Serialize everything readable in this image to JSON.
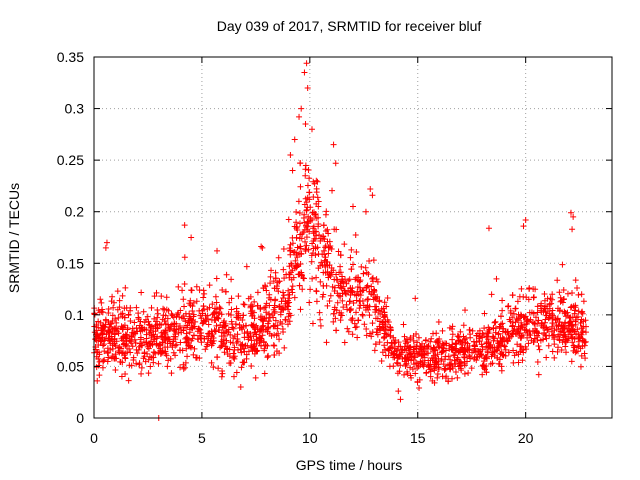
{
  "chart_data": {
    "type": "scatter",
    "title": "Day 039 of 2017, SRMTID for receiver bluf",
    "xlabel": "GPS time / hours",
    "ylabel": "SRMTID / TECUs",
    "xlim": [
      0,
      24
    ],
    "ylim": [
      0,
      0.35
    ],
    "xticks": [
      0,
      5,
      10,
      15,
      20
    ],
    "yticks": [
      0,
      0.05,
      0.1,
      0.15,
      0.2,
      0.25,
      0.3,
      0.35
    ],
    "xtick_labels": [
      "0",
      "5",
      "10",
      "15",
      "20"
    ],
    "ytick_labels": [
      "0",
      "0.05",
      "0.1",
      "0.15",
      "0.2",
      "0.25",
      "0.3",
      "0.35"
    ],
    "grid": true,
    "marker": "+",
    "color": "#ff0000",
    "time_range_hours": [
      0,
      22.8
    ],
    "baseline_profile": [
      [
        0,
        0.08
      ],
      [
        1,
        0.08
      ],
      [
        2,
        0.075
      ],
      [
        3,
        0.075
      ],
      [
        4,
        0.085
      ],
      [
        5,
        0.095
      ],
      [
        6,
        0.085
      ],
      [
        7,
        0.08
      ],
      [
        8,
        0.09
      ],
      [
        9,
        0.12
      ],
      [
        9.5,
        0.17
      ],
      [
        10,
        0.19
      ],
      [
        10.5,
        0.16
      ],
      [
        11,
        0.13
      ],
      [
        12,
        0.12
      ],
      [
        12.8,
        0.11
      ],
      [
        13.5,
        0.085
      ],
      [
        14,
        0.065
      ],
      [
        15,
        0.06
      ],
      [
        16,
        0.06
      ],
      [
        17,
        0.065
      ],
      [
        18,
        0.07
      ],
      [
        19,
        0.075
      ],
      [
        20,
        0.09
      ],
      [
        21,
        0.095
      ],
      [
        22,
        0.09
      ],
      [
        22.8,
        0.08
      ]
    ],
    "spread_profile": [
      [
        0,
        0.025
      ],
      [
        9,
        0.035
      ],
      [
        10,
        0.06
      ],
      [
        11,
        0.04
      ],
      [
        13,
        0.03
      ],
      [
        14,
        0.018
      ],
      [
        18,
        0.02
      ],
      [
        20,
        0.028
      ],
      [
        22,
        0.03
      ],
      [
        22.8,
        0.025
      ]
    ],
    "notable_points": [
      {
        "x": 9.85,
        "y": 0.344
      },
      {
        "x": 9.75,
        "y": 0.335
      },
      {
        "x": 9.9,
        "y": 0.32
      },
      {
        "x": 9.6,
        "y": 0.3
      },
      {
        "x": 9.5,
        "y": 0.292
      },
      {
        "x": 9.8,
        "y": 0.285
      },
      {
        "x": 9.3,
        "y": 0.27
      },
      {
        "x": 10.1,
        "y": 0.28
      },
      {
        "x": 11.1,
        "y": 0.265
      },
      {
        "x": 11.2,
        "y": 0.247
      },
      {
        "x": 9.1,
        "y": 0.255
      },
      {
        "x": 9.2,
        "y": 0.24
      },
      {
        "x": 10.3,
        "y": 0.23
      },
      {
        "x": 12.8,
        "y": 0.222
      },
      {
        "x": 12.9,
        "y": 0.216
      },
      {
        "x": 12.6,
        "y": 0.2
      },
      {
        "x": 12.0,
        "y": 0.205
      },
      {
        "x": 20.0,
        "y": 0.192
      },
      {
        "x": 19.9,
        "y": 0.186
      },
      {
        "x": 22.1,
        "y": 0.199
      },
      {
        "x": 22.2,
        "y": 0.195
      },
      {
        "x": 22.15,
        "y": 0.183
      },
      {
        "x": 4.2,
        "y": 0.187
      },
      {
        "x": 18.3,
        "y": 0.184
      },
      {
        "x": 0.6,
        "y": 0.17
      },
      {
        "x": 0.55,
        "y": 0.165
      },
      {
        "x": 4.5,
        "y": 0.175
      },
      {
        "x": 7.8,
        "y": 0.165
      },
      {
        "x": 5.7,
        "y": 0.162
      },
      {
        "x": 14.2,
        "y": 0.018
      },
      {
        "x": 14.1,
        "y": 0.026
      },
      {
        "x": 6.8,
        "y": 0.03
      },
      {
        "x": 0.15,
        "y": 0.036
      },
      {
        "x": 3.0,
        "y": 0.0
      }
    ]
  }
}
